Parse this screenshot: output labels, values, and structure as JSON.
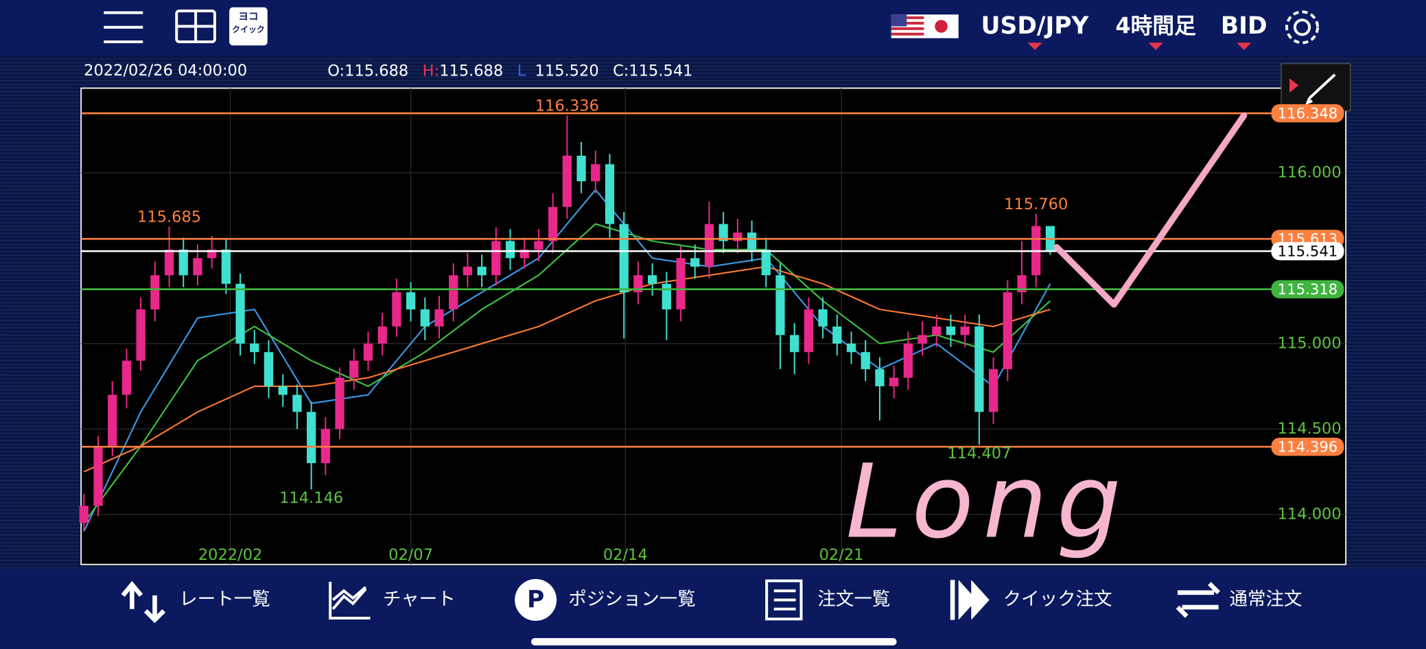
{
  "header": {
    "quick_icon_top": "ヨコ",
    "quick_icon_bottom": "クイック",
    "pair": "USD/JPY",
    "timeframe": "4時間足",
    "price_type": "BID"
  },
  "info": {
    "time": "2022/02/26 04:00:00",
    "o_label": "O:",
    "o_value": "115.688",
    "h_label": "H:",
    "h_value": "115.688",
    "l_label": "L",
    "l_value": "115.520",
    "c_label": "C:",
    "c_value": "115.541"
  },
  "chart_data": {
    "type": "candlestick",
    "up_color": "#e8288a",
    "down_color": "#3fe0cf",
    "xlim": [
      -0.2,
      88.8
    ],
    "xticks": [
      {
        "value": 10.3,
        "label": "2022/02"
      },
      {
        "value": 23,
        "label": "02/07"
      },
      {
        "value": 38.1,
        "label": "02/14"
      },
      {
        "value": 53.3,
        "label": "02/21"
      }
    ],
    "ylim": [
      113.707,
      116.495
    ],
    "yticks": [
      {
        "value": 114,
        "label": "114.000"
      },
      {
        "value": 114.5,
        "label": "114.500"
      },
      {
        "value": 115,
        "label": "115.000"
      },
      {
        "value": 116,
        "label": "116.000"
      }
    ],
    "open": [
      113.95,
      114.05,
      114.4,
      114.7,
      114.9,
      115.2,
      115.4,
      115.55,
      115.4,
      115.5,
      115.55,
      115.35,
      115.0,
      114.95,
      114.75,
      114.7,
      114.6,
      114.3,
      114.5,
      114.8,
      114.9,
      115.0,
      115.1,
      115.3,
      115.2,
      115.1,
      115.2,
      115.4,
      115.45,
      115.4,
      115.6,
      115.5,
      115.55,
      115.6,
      115.8,
      116.1,
      115.95,
      116.05,
      115.7,
      115.3,
      115.4,
      115.35,
      115.2,
      115.5,
      115.45,
      115.7,
      115.6,
      115.65,
      115.55,
      115.4,
      115.05,
      114.95,
      115.2,
      115.1,
      115.0,
      114.95,
      114.85,
      114.75,
      114.8,
      115.0,
      115.05,
      115.1,
      115.05,
      115.1,
      114.6,
      114.85,
      115.3,
      115.4,
      115.688
    ],
    "high": [
      114.12,
      114.46,
      114.78,
      114.97,
      115.27,
      115.48,
      115.685,
      115.62,
      115.58,
      115.63,
      115.61,
      115.41,
      115.08,
      115.02,
      114.82,
      114.76,
      114.66,
      114.57,
      114.86,
      114.97,
      115.07,
      115.18,
      115.38,
      115.36,
      115.27,
      115.28,
      115.47,
      115.53,
      115.52,
      115.68,
      115.67,
      115.62,
      115.67,
      115.88,
      116.336,
      116.18,
      116.13,
      116.11,
      115.77,
      115.48,
      115.47,
      115.42,
      115.57,
      115.58,
      115.83,
      115.77,
      115.73,
      115.72,
      115.62,
      115.47,
      115.12,
      115.27,
      115.27,
      115.17,
      115.07,
      115.02,
      114.92,
      114.87,
      115.07,
      115.13,
      115.17,
      115.17,
      115.17,
      115.17,
      114.92,
      115.37,
      115.6,
      115.76,
      115.688
    ],
    "low": [
      113.9,
      113.99,
      114.34,
      114.62,
      114.84,
      115.13,
      115.33,
      115.33,
      115.34,
      115.44,
      115.29,
      114.93,
      114.88,
      114.68,
      114.63,
      114.5,
      114.146,
      114.23,
      114.44,
      114.73,
      114.84,
      114.93,
      115.04,
      115.13,
      115.02,
      115.03,
      115.13,
      115.33,
      115.33,
      115.34,
      115.43,
      115.44,
      115.48,
      115.53,
      115.73,
      115.88,
      115.88,
      115.62,
      115.03,
      115.23,
      115.28,
      115.02,
      115.13,
      115.38,
      115.38,
      115.53,
      115.53,
      115.48,
      115.33,
      114.85,
      114.82,
      114.88,
      115.03,
      114.93,
      114.88,
      114.78,
      114.55,
      114.68,
      114.73,
      114.93,
      114.98,
      114.98,
      114.98,
      114.407,
      114.53,
      114.78,
      115.23,
      115.33,
      115.52
    ],
    "close": [
      114.05,
      114.4,
      114.7,
      114.9,
      115.2,
      115.4,
      115.55,
      115.4,
      115.5,
      115.55,
      115.35,
      115.0,
      114.95,
      114.75,
      114.7,
      114.6,
      114.3,
      114.5,
      114.8,
      114.9,
      115.0,
      115.1,
      115.3,
      115.2,
      115.1,
      115.2,
      115.4,
      115.45,
      115.4,
      115.6,
      115.5,
      115.55,
      115.6,
      115.8,
      116.1,
      115.95,
      116.05,
      115.7,
      115.3,
      115.4,
      115.35,
      115.2,
      115.5,
      115.45,
      115.7,
      115.6,
      115.65,
      115.55,
      115.4,
      115.05,
      114.95,
      115.2,
      115.1,
      115.0,
      114.95,
      114.85,
      114.75,
      114.8,
      115.0,
      115.05,
      115.1,
      115.05,
      115.1,
      114.6,
      114.85,
      115.3,
      115.4,
      115.688,
      115.541
    ],
    "line_x": [
      0,
      4,
      8,
      12,
      16,
      20,
      24,
      28,
      32,
      36,
      40,
      44,
      48,
      52,
      56,
      60,
      64,
      68
    ],
    "lines": [
      {
        "color": "#3a9be8",
        "values": [
          113.9,
          114.6,
          115.15,
          115.2,
          114.65,
          114.7,
          115.1,
          115.3,
          115.5,
          115.9,
          115.5,
          115.45,
          115.5,
          115.1,
          114.85,
          115.0,
          114.75,
          115.35
        ]
      },
      {
        "color": "#3fc43f",
        "values": [
          113.95,
          114.4,
          114.9,
          115.1,
          114.9,
          114.75,
          114.95,
          115.2,
          115.4,
          115.7,
          115.6,
          115.55,
          115.55,
          115.25,
          115.0,
          115.05,
          114.95,
          115.25
        ]
      },
      {
        "color": "#ff7a30",
        "values": [
          114.25,
          114.4,
          114.6,
          114.75,
          114.75,
          114.8,
          114.9,
          115.0,
          115.1,
          115.25,
          115.35,
          115.4,
          115.45,
          115.35,
          115.2,
          115.15,
          115.1,
          115.2
        ]
      }
    ],
    "levels": [
      {
        "value": 116.348,
        "color": "#ff7f3f"
      },
      {
        "value": 115.613,
        "color": "#ff7f3f"
      },
      {
        "value": 115.541,
        "color": "#ffffff"
      },
      {
        "value": 115.318,
        "color": "#3fb43f"
      },
      {
        "value": 114.396,
        "color": "#ff7f3f"
      }
    ],
    "annotations": [
      {
        "x": 6,
        "value": 115.685,
        "label": "115.685",
        "color": "#ff7f3f"
      },
      {
        "x": 34,
        "value": 116.336,
        "label": "116.336",
        "color": "#ff7f3f"
      },
      {
        "x": 67,
        "value": 115.76,
        "label": "115.760",
        "color": "#ff7f3f"
      },
      {
        "x": 16,
        "value": 114.146,
        "label": "114.146",
        "color": "#5cc43f"
      },
      {
        "x": 63,
        "value": 114.407,
        "label": "114.407",
        "color": "#5cc43f"
      }
    ],
    "drawing_text": "Long"
  },
  "footer": {
    "items": [
      "レート一覧",
      "チャート",
      "ポジション一覧",
      "注文一覧",
      "クイック注文",
      "通常注文"
    ]
  }
}
